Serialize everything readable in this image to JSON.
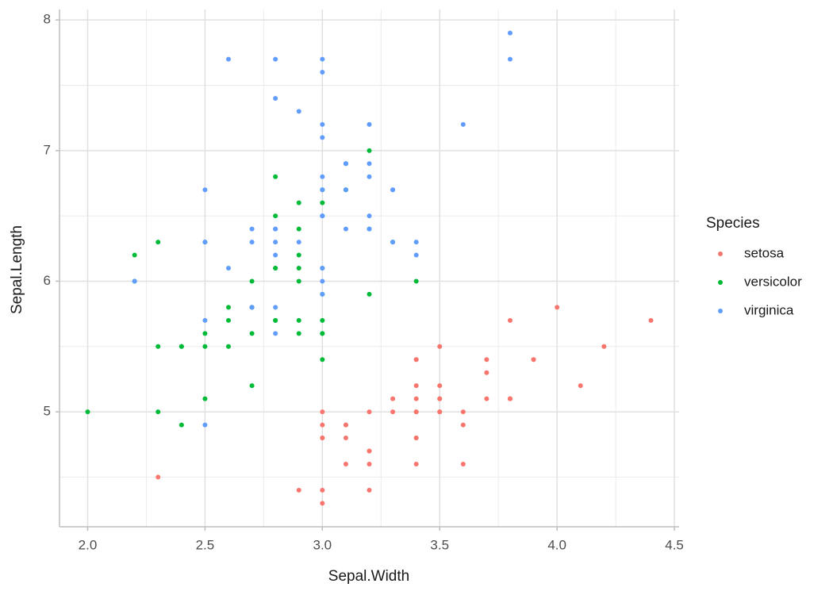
{
  "chart_data": {
    "type": "scatter",
    "x_label": "Sepal.Width",
    "y_label": "Sepal.Length",
    "legend_title": "Species",
    "legend_position": "right",
    "grid": true,
    "xlim": [
      1.88,
      4.52
    ],
    "ylim": [
      4.12,
      8.08
    ],
    "xticks": [
      {
        "value": 2,
        "label": "2.0"
      },
      2.5,
      {
        "value": 3,
        "label": "3.0"
      },
      3.5,
      {
        "value": 4,
        "label": "4.0"
      },
      4.5
    ],
    "yticks": [
      5,
      6,
      7,
      8
    ],
    "minor_xticks": [
      2.25,
      2.75,
      3.25,
      3.75,
      4.25
    ],
    "minor_yticks": [
      4.5,
      5.5,
      6.5,
      7.5
    ],
    "series": [
      {
        "name": "setosa",
        "color": "#F8766D",
        "x": [
          3.5,
          3.0,
          3.2,
          3.1,
          3.6,
          3.9,
          3.4,
          3.4,
          2.9,
          3.1,
          3.7,
          3.4,
          3.0,
          3.0,
          4.0,
          4.4,
          3.9,
          3.5,
          3.8,
          3.8,
          3.4,
          3.7,
          3.6,
          3.3,
          3.4,
          3.0,
          3.4,
          3.5,
          3.4,
          3.2,
          3.1,
          3.4,
          4.1,
          4.2,
          3.1,
          3.2,
          3.5,
          3.6,
          3.0,
          3.4,
          3.5,
          2.3,
          3.2,
          3.5,
          3.8,
          3.0,
          3.8,
          3.2,
          3.7,
          3.3
        ],
        "values": [
          5.1,
          4.9,
          4.7,
          4.6,
          5.0,
          5.4,
          4.6,
          5.0,
          4.4,
          4.9,
          5.4,
          4.8,
          4.8,
          4.3,
          5.8,
          5.7,
          5.4,
          5.1,
          5.7,
          5.1,
          5.4,
          5.1,
          4.6,
          5.1,
          4.8,
          5.0,
          5.0,
          5.2,
          5.2,
          4.7,
          4.8,
          5.4,
          5.2,
          5.5,
          4.9,
          5.0,
          5.5,
          4.9,
          4.4,
          5.1,
          5.0,
          4.5,
          4.4,
          5.0,
          5.1,
          4.8,
          5.1,
          4.6,
          5.3,
          5.0
        ]
      },
      {
        "name": "versicolor",
        "color": "#00BA38",
        "x": [
          3.2,
          3.2,
          3.1,
          2.3,
          2.8,
          2.8,
          3.3,
          2.4,
          2.9,
          2.7,
          2.0,
          3.0,
          2.2,
          2.9,
          2.9,
          3.1,
          3.0,
          2.7,
          2.2,
          2.5,
          3.2,
          2.8,
          2.5,
          2.8,
          2.9,
          3.0,
          2.8,
          3.0,
          2.9,
          2.6,
          2.4,
          2.4,
          2.7,
          2.7,
          3.0,
          3.4,
          3.1,
          2.3,
          3.0,
          2.5,
          2.6,
          3.0,
          2.6,
          2.3,
          2.7,
          3.0,
          2.9,
          2.9,
          2.5,
          2.8
        ],
        "values": [
          7.0,
          6.4,
          6.9,
          5.5,
          6.5,
          5.7,
          6.3,
          4.9,
          6.6,
          5.2,
          5.0,
          5.9,
          6.0,
          6.1,
          5.6,
          6.7,
          5.6,
          5.8,
          6.2,
          5.6,
          5.9,
          6.1,
          6.3,
          6.1,
          6.4,
          6.6,
          6.8,
          6.7,
          6.0,
          5.7,
          5.5,
          5.5,
          5.8,
          6.0,
          5.4,
          6.0,
          6.7,
          6.3,
          5.6,
          5.5,
          5.5,
          6.1,
          5.8,
          5.0,
          5.6,
          5.7,
          5.7,
          6.2,
          5.1,
          5.7
        ]
      },
      {
        "name": "virginica",
        "color": "#619CFF",
        "x": [
          3.3,
          2.7,
          3.0,
          2.9,
          3.0,
          3.0,
          2.5,
          2.9,
          2.5,
          3.6,
          3.2,
          2.7,
          3.0,
          2.5,
          2.8,
          3.2,
          3.0,
          3.8,
          2.6,
          2.2,
          3.2,
          2.8,
          2.8,
          2.7,
          3.3,
          3.2,
          2.8,
          3.0,
          2.8,
          3.0,
          2.8,
          3.8,
          2.8,
          2.8,
          2.6,
          3.0,
          3.4,
          3.1,
          3.0,
          3.1,
          3.1,
          3.1,
          2.7,
          3.2,
          3.3,
          3.0,
          2.5,
          3.0,
          3.4,
          3.0
        ],
        "values": [
          6.3,
          5.8,
          7.1,
          6.3,
          6.5,
          7.6,
          4.9,
          7.3,
          6.7,
          7.2,
          6.5,
          6.4,
          6.8,
          5.7,
          5.8,
          6.4,
          6.5,
          7.7,
          7.7,
          6.0,
          6.9,
          5.6,
          7.7,
          6.3,
          6.7,
          7.2,
          6.2,
          6.1,
          6.4,
          7.2,
          7.4,
          7.9,
          6.4,
          6.3,
          6.1,
          7.7,
          6.3,
          6.4,
          6.0,
          6.9,
          6.7,
          6.9,
          5.8,
          6.8,
          6.7,
          6.7,
          6.3,
          6.5,
          6.2,
          5.9
        ]
      }
    ]
  }
}
